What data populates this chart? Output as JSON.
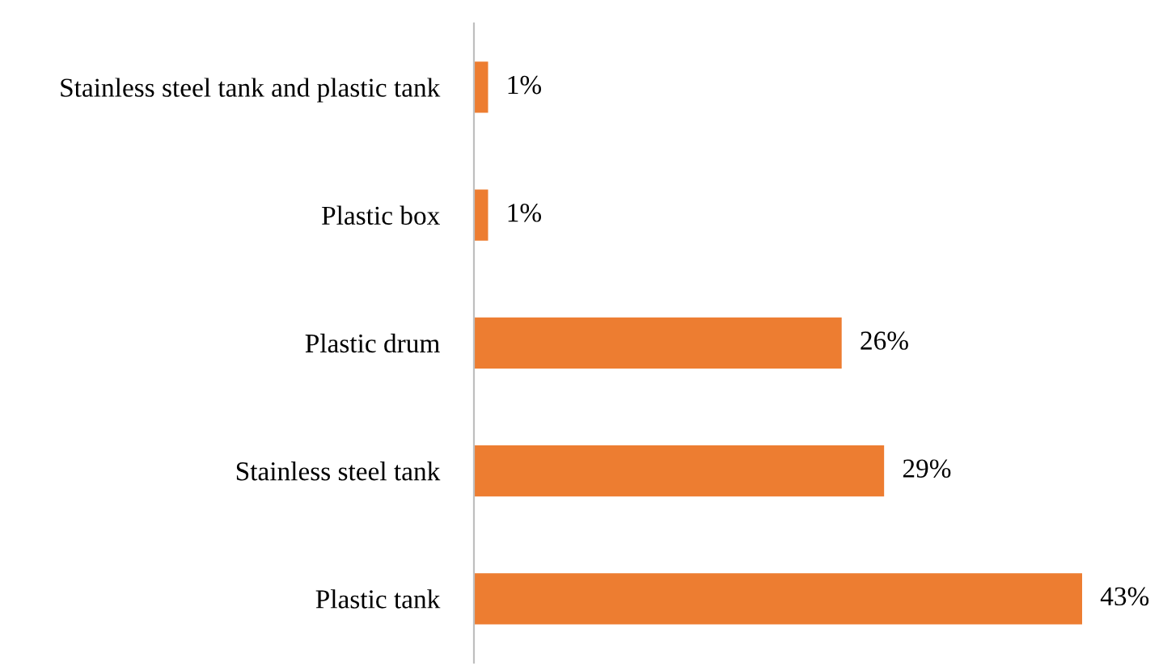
{
  "chart_data": {
    "type": "bar",
    "orientation": "horizontal",
    "categories": [
      "Stainless steel tank and plastic tank",
      "Plastic box",
      "Plastic drum",
      "Stainless steel tank",
      "Plastic tank"
    ],
    "values": [
      1,
      1,
      26,
      29,
      43
    ],
    "value_labels": [
      "1%",
      "1%",
      "26%",
      "29%",
      "43%"
    ],
    "color": "#ed7d31",
    "grid": false,
    "legend": false
  }
}
